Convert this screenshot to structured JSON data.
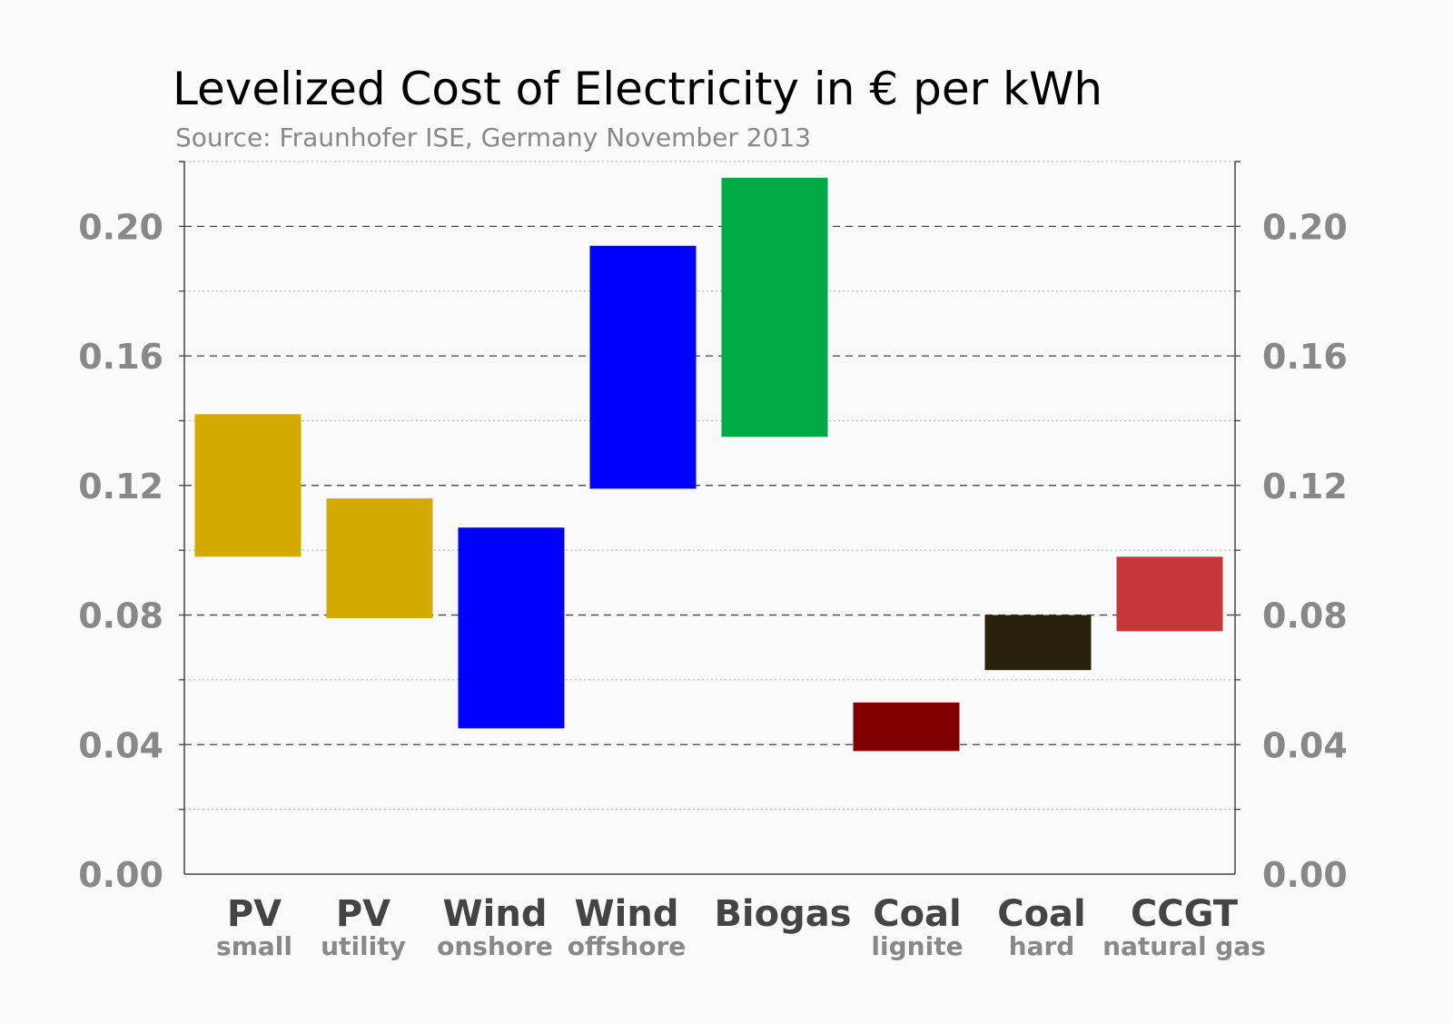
{
  "chart_data": {
    "type": "floating-bar",
    "title": "Levelized Cost of Electricity in € per kWh",
    "subtitle": "Source: Fraunhofer ISE, Germany November 2013",
    "xlabel": "",
    "ylabel": "",
    "ylim": [
      0,
      0.22
    ],
    "yticks": [
      "0.00",
      "0.04",
      "0.08",
      "0.12",
      "0.16",
      "0.20"
    ],
    "grid": "major dashed, minor dotted",
    "categories": [
      {
        "label": "PV",
        "sub": "small",
        "low": 0.098,
        "high": 0.142,
        "color": "#d4aa00"
      },
      {
        "label": "PV",
        "sub": "utility",
        "low": 0.079,
        "high": 0.116,
        "color": "#d4aa00"
      },
      {
        "label": "Wind",
        "sub": "onshore",
        "low": 0.045,
        "high": 0.107,
        "color": "#0000ff"
      },
      {
        "label": "Wind",
        "sub": "offshore",
        "low": 0.119,
        "high": 0.194,
        "color": "#0000ff"
      },
      {
        "label": "Biogas",
        "sub": "",
        "low": 0.135,
        "high": 0.215,
        "color": "#00aa44"
      },
      {
        "label": "Coal",
        "sub": "lignite",
        "low": 0.038,
        "high": 0.053,
        "color": "#800000"
      },
      {
        "label": "Coal",
        "sub": "hard",
        "low": 0.063,
        "high": 0.08,
        "color": "#28220b"
      },
      {
        "label": "CCGT",
        "sub": "natural gas",
        "low": 0.075,
        "high": 0.098,
        "color": "#c83737"
      }
    ]
  }
}
